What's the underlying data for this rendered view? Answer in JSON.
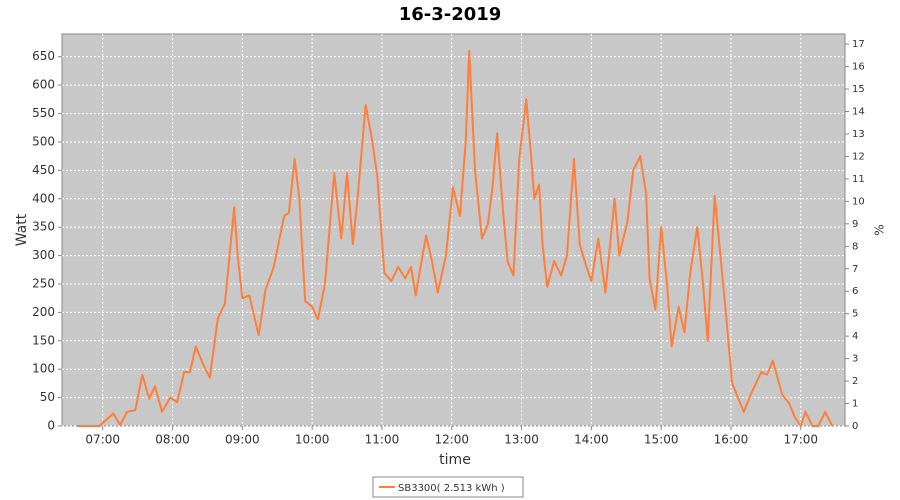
{
  "chart_data": {
    "type": "line",
    "title": "16-3-2019",
    "x_label": "time",
    "y_label": "Watt",
    "y2_label": "%",
    "x": [
      "06:38",
      "06:57",
      "07:09",
      "07:15",
      "07:21",
      "07:28",
      "07:34",
      "07:40",
      "07:45",
      "07:51",
      "07:58",
      "08:04",
      "08:10",
      "08:15",
      "08:20",
      "08:26",
      "08:32",
      "08:39",
      "08:45",
      "08:53",
      "08:56",
      "09:00",
      "09:06",
      "09:14",
      "09:20",
      "09:27",
      "09:36",
      "09:40",
      "09:45",
      "09:49",
      "09:54",
      "10:00",
      "10:05",
      "10:11",
      "10:19",
      "10:25",
      "10:30",
      "10:35",
      "10:39",
      "10:46",
      "10:51",
      "10:56",
      "11:02",
      "11:08",
      "11:14",
      "11:20",
      "11:25",
      "11:29",
      "11:34",
      "11:38",
      "11:43",
      "11:48",
      "11:55",
      "12:01",
      "12:07",
      "12:12",
      "12:15",
      "12:20",
      "12:26",
      "12:31",
      "12:35",
      "12:39",
      "12:44",
      "12:48",
      "12:53",
      "12:58",
      "13:04",
      "13:08",
      "13:11",
      "13:15",
      "13:18",
      "13:22",
      "13:28",
      "13:34",
      "13:39",
      "13:45",
      "13:50",
      "13:55",
      "14:00",
      "14:06",
      "14:12",
      "14:20",
      "14:24",
      "14:31",
      "14:36",
      "14:42",
      "14:47",
      "14:50",
      "14:55",
      "15:00",
      "15:05",
      "15:09",
      "15:15",
      "15:20",
      "15:25",
      "15:31",
      "15:36",
      "15:40",
      "15:46",
      "15:50",
      "15:56",
      "16:01",
      "16:05",
      "16:11",
      "16:18",
      "16:26",
      "16:31",
      "16:36",
      "16:44",
      "16:50",
      "16:55",
      "17:00",
      "17:04",
      "17:10",
      "17:15",
      "17:21",
      "17:27"
    ],
    "series": [
      {
        "name": "SB3300( 2.513 kWh )",
        "color": "#ff7f3a",
        "values": [
          0,
          0,
          22,
          2,
          25,
          28,
          90,
          48,
          70,
          25,
          50,
          42,
          95,
          95,
          140,
          110,
          85,
          190,
          215,
          385,
          300,
          225,
          230,
          160,
          240,
          280,
          370,
          375,
          470,
          400,
          220,
          210,
          188,
          250,
          445,
          330,
          445,
          320,
          400,
          565,
          510,
          440,
          270,
          255,
          280,
          260,
          280,
          230,
          290,
          335,
          290,
          235,
          300,
          420,
          370,
          500,
          660,
          450,
          330,
          355,
          420,
          515,
          380,
          290,
          265,
          470,
          575,
          480,
          400,
          425,
          320,
          245,
          290,
          265,
          300,
          470,
          320,
          285,
          255,
          330,
          235,
          400,
          300,
          360,
          450,
          475,
          410,
          260,
          205,
          350,
          250,
          140,
          210,
          165,
          270,
          350,
          250,
          150,
          405,
          320,
          190,
          75,
          55,
          25,
          60,
          95,
          90,
          115,
          55,
          40,
          15,
          0,
          25,
          0,
          0,
          25,
          0
        ]
      }
    ],
    "xlim": [
      "06:25",
      "17:38"
    ],
    "xticks": [
      "07:00",
      "08:00",
      "09:00",
      "10:00",
      "11:00",
      "12:00",
      "13:00",
      "14:00",
      "15:00",
      "16:00",
      "17:00"
    ],
    "ylim": [
      0,
      690
    ],
    "yticks": [
      0,
      50,
      100,
      150,
      200,
      250,
      300,
      350,
      400,
      450,
      500,
      550,
      600,
      650
    ],
    "y2lim": [
      0,
      17.45
    ],
    "y2ticks": [
      0,
      1,
      2,
      3,
      4,
      5,
      6,
      7,
      8,
      9,
      10,
      11,
      12,
      13,
      14,
      15,
      16,
      17
    ],
    "grid": true,
    "legend": "bottom"
  }
}
